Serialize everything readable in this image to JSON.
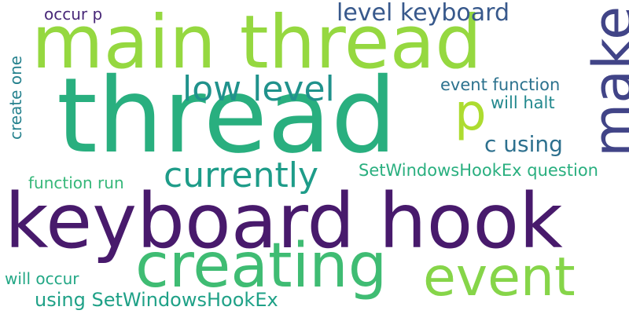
{
  "words": [
    {
      "text": "keyboard hook",
      "color": "#481a6c"
    },
    {
      "text": "thread",
      "color": "#29af7f"
    },
    {
      "text": "main thread",
      "color": "#95d840"
    },
    {
      "text": "creating",
      "color": "#3fbc73"
    },
    {
      "text": "event",
      "color": "#86d549"
    },
    {
      "text": "make",
      "color": "#414487"
    },
    {
      "text": "level keyboard",
      "color": "#38598c"
    },
    {
      "text": "low level",
      "color": "#20928c"
    },
    {
      "text": "currently",
      "color": "#1e9c89"
    },
    {
      "text": "p",
      "color": "#addc30"
    },
    {
      "text": "c using",
      "color": "#2d708e"
    },
    {
      "text": "event function",
      "color": "#2c728e"
    },
    {
      "text": "will halt",
      "color": "#23898e"
    },
    {
      "text": "SetWindowsHookEx question",
      "color": "#29af7f"
    },
    {
      "text": "function run",
      "color": "#35b779"
    },
    {
      "text": "using SetWindowsHookEx",
      "color": "#1fa187"
    },
    {
      "text": "will occur",
      "color": "#22a785"
    },
    {
      "text": "occur p",
      "color": "#482878"
    },
    {
      "text": "create one",
      "color": "#26828e"
    }
  ]
}
